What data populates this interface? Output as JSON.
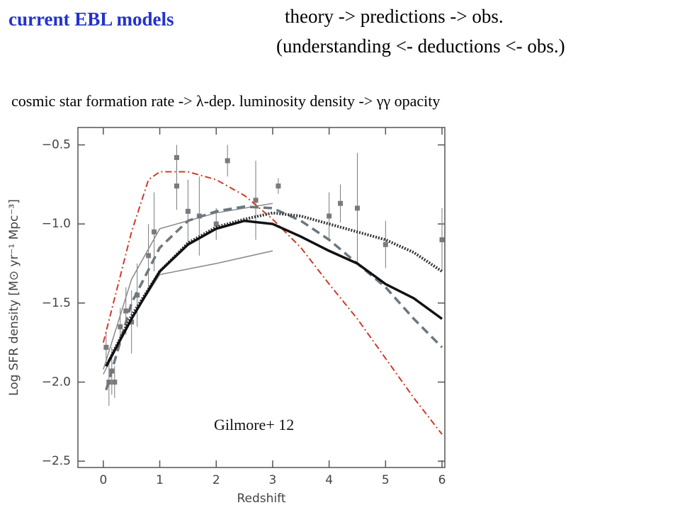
{
  "slide": {
    "title": "current EBL models",
    "line1": "theory -> predictions -> obs.",
    "line2": "(understanding <- deductions <- obs.)",
    "subtitle": "cosmic star formation rate -> λ-dep. luminosity density -> γγ opacity"
  },
  "chart_data": {
    "type": "line",
    "annotation": "Gilmore+ 12",
    "xlabel": "Redshift",
    "ylabel": "Log SFR density [M⊙ yr⁻¹ Mpc⁻³]",
    "xlim": [
      -0.45,
      6.05
    ],
    "ylim": [
      -2.54,
      -0.39
    ],
    "xticks": [
      0,
      1,
      2,
      3,
      4,
      5,
      6
    ],
    "yticks": [
      {
        "value": -0.5,
        "label": "−0.5"
      },
      {
        "value": -1.0,
        "label": "−1.0"
      },
      {
        "value": -1.5,
        "label": "−1.5"
      },
      {
        "value": -2.0,
        "label": "−2.0"
      },
      {
        "value": -2.5,
        "label": "−2.5"
      }
    ],
    "series": [
      {
        "color": "#888888",
        "dash": "solid",
        "width": 1.5,
        "x": [
          0,
          0.5,
          1,
          2,
          3
        ],
        "values": [
          -1.92,
          -1.35,
          -1.03,
          -0.93,
          -0.87
        ]
      },
      {
        "color": "#888888",
        "dash": "solid",
        "width": 1.5,
        "x": [
          0,
          0.5,
          1,
          2,
          3
        ],
        "values": [
          -1.95,
          -1.6,
          -1.32,
          -1.25,
          -1.17
        ]
      },
      {
        "color": "#d03a2a",
        "dash": "dashdot",
        "width": 2,
        "x": [
          0,
          0.5,
          0.8,
          1,
          1.5,
          2,
          2.5,
          3,
          3.5,
          4,
          4.5,
          5,
          5.5,
          6
        ],
        "values": [
          -1.75,
          -1.05,
          -0.72,
          -0.67,
          -0.67,
          -0.72,
          -0.82,
          -0.97,
          -1.15,
          -1.38,
          -1.6,
          -1.85,
          -2.1,
          -2.33
        ]
      },
      {
        "color": "#6b7780",
        "dash": "dashed",
        "width": 3.5,
        "x": [
          0.05,
          0.5,
          1,
          1.5,
          2,
          2.5,
          3,
          3.5,
          4,
          4.5,
          5,
          5.5,
          6
        ],
        "values": [
          -2.05,
          -1.5,
          -1.15,
          -0.98,
          -0.92,
          -0.89,
          -0.9,
          -0.98,
          -1.1,
          -1.25,
          -1.4,
          -1.6,
          -1.78
        ]
      },
      {
        "color": "#333333",
        "dash": "dotted",
        "width": 4,
        "x": [
          0.05,
          0.5,
          1,
          1.5,
          2,
          2.5,
          3,
          3.5,
          4,
          4.5,
          5,
          5.5,
          6
        ],
        "values": [
          -1.9,
          -1.58,
          -1.3,
          -1.12,
          -1.02,
          -0.97,
          -0.93,
          -0.95,
          -1.0,
          -1.05,
          -1.1,
          -1.18,
          -1.3
        ]
      },
      {
        "color": "#111111",
        "dash": "solid",
        "width": 3.5,
        "x": [
          0.05,
          0.5,
          1,
          1.5,
          2,
          2.5,
          3,
          3.5,
          4,
          4.5,
          5,
          5.5,
          6
        ],
        "values": [
          -1.9,
          -1.6,
          -1.3,
          -1.13,
          -1.03,
          -0.98,
          -1.0,
          -1.08,
          -1.17,
          -1.25,
          -1.38,
          -1.47,
          -1.6
        ]
      }
    ],
    "points": {
      "color": "#7a7a7a",
      "x": [
        0.05,
        0.1,
        0.15,
        0.2,
        0.3,
        0.4,
        0.5,
        0.6,
        0.8,
        0.9,
        1.3,
        1.3,
        1.5,
        1.7,
        2.0,
        2.2,
        2.7,
        3.1,
        4.0,
        4.2,
        4.5,
        5.0,
        6.0
      ],
      "y": [
        -1.78,
        -2.0,
        -1.93,
        -2.0,
        -1.65,
        -1.55,
        -1.62,
        -1.45,
        -1.2,
        -1.05,
        -0.58,
        -0.76,
        -0.92,
        -0.95,
        -1.0,
        -0.6,
        -0.85,
        -0.76,
        -0.95,
        -0.87,
        -0.9,
        -1.13,
        -1.1
      ],
      "err": [
        0.1,
        0.15,
        0.15,
        0.1,
        0.12,
        0.15,
        0.2,
        0.2,
        0.2,
        0.25,
        0.08,
        0.15,
        0.2,
        0.25,
        0.1,
        0.1,
        0.25,
        0.05,
        0.15,
        0.12,
        0.35,
        0.15,
        0.2
      ]
    }
  }
}
